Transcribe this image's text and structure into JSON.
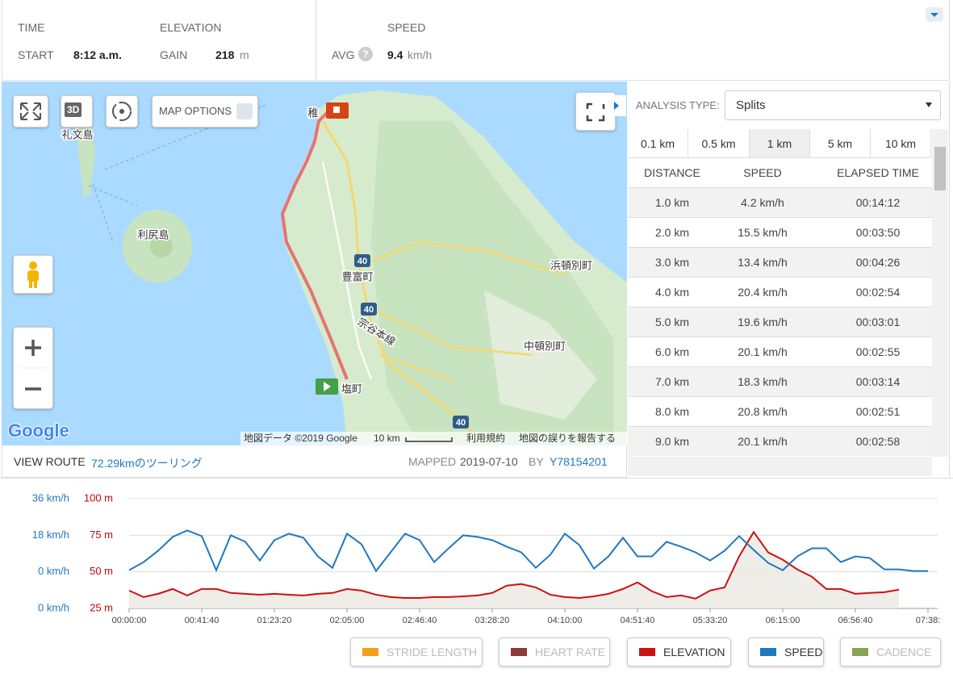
{
  "header": {
    "time": {
      "title": "TIME",
      "label": "START",
      "value": "8:12 a.m."
    },
    "elevation": {
      "title": "ELEVATION",
      "label": "GAIN",
      "value": "218",
      "unit": "m"
    },
    "speed": {
      "title": "SPEED",
      "label": "AVG",
      "help": "?",
      "value": "9.4",
      "unit": "km/h"
    }
  },
  "map": {
    "button_3d": "3D",
    "options": "MAP OPTIONS",
    "labels": [
      "礼文島",
      "利尻島",
      "稚",
      "豊富町",
      "宗谷本線",
      "浜頓別町",
      "中頓別町",
      "塩町"
    ],
    "road_numbers": [
      "40",
      "40",
      "40"
    ],
    "logo": "Google",
    "attribution": "地図データ ©2019 Google",
    "scale": "10 km",
    "terms": "利用規約",
    "report": "地図の誤りを報告する"
  },
  "route": {
    "label": "VIEW ROUTE",
    "name": "72.29kmのツーリング",
    "mapped": "MAPPED",
    "date": "2019-07-10",
    "by": "BY",
    "user": "Y78154201"
  },
  "analysis": {
    "label": "ANALYSIS TYPE:",
    "selected": "Splits",
    "tabs": [
      "0.1 km",
      "0.5 km",
      "1 km",
      "5 km",
      "10 km"
    ],
    "active_tab": 2,
    "columns": [
      "DISTANCE",
      "SPEED",
      "ELAPSED TIME"
    ],
    "rows": [
      [
        "1.0 km",
        "4.2 km/h",
        "00:14:12"
      ],
      [
        "2.0 km",
        "15.5 km/h",
        "00:03:50"
      ],
      [
        "3.0 km",
        "13.4 km/h",
        "00:04:26"
      ],
      [
        "4.0 km",
        "20.4 km/h",
        "00:02:54"
      ],
      [
        "5.0 km",
        "19.6 km/h",
        "00:03:01"
      ],
      [
        "6.0 km",
        "20.1 km/h",
        "00:02:55"
      ],
      [
        "7.0 km",
        "18.3 km/h",
        "00:03:14"
      ],
      [
        "8.0 km",
        "20.8 km/h",
        "00:02:51"
      ],
      [
        "9.0 km",
        "20.1 km/h",
        "00:02:58"
      ]
    ]
  },
  "chart_data": {
    "type": "line",
    "x": [
      0,
      500,
      1000,
      1500,
      2000,
      2500,
      3000,
      3500,
      4000,
      4500,
      5000,
      5500,
      6000,
      6500,
      7000,
      7500,
      8000,
      8500,
      9000,
      9500,
      10000,
      10500,
      11000,
      11500,
      12000,
      12500,
      13000,
      13500,
      14000,
      14500,
      15000,
      15500,
      16000,
      16500,
      17000,
      17500,
      18000,
      18500,
      19000,
      19500,
      20000,
      20500,
      21000,
      21500,
      22000,
      22500,
      23000,
      23500,
      24000,
      24500,
      25000,
      25500,
      26000,
      26500,
      27000,
      27500
    ],
    "xlim": [
      0,
      27800
    ],
    "xticks": [
      {
        "value": 0,
        "label": "00:00:00"
      },
      {
        "value": 2500,
        "label": "00:41:40"
      },
      {
        "value": 5000,
        "label": "01:23:20"
      },
      {
        "value": 7500,
        "label": "02:05:00"
      },
      {
        "value": 10000,
        "label": "02:46:40"
      },
      {
        "value": 12500,
        "label": "03:28:20"
      },
      {
        "value": 15000,
        "label": "04:10:00"
      },
      {
        "value": 17500,
        "label": "04:51:40"
      },
      {
        "value": 20000,
        "label": "05:33:20"
      },
      {
        "value": 22500,
        "label": "06:15:00"
      },
      {
        "value": 25000,
        "label": "06:56:40"
      },
      {
        "value": 27500,
        "label": "07:38:"
      }
    ],
    "ylim": [
      25,
      100
    ],
    "yticks": [
      {
        "value": 100,
        "label": "100 m"
      },
      {
        "value": 75,
        "label": "75 m"
      },
      {
        "value": 50,
        "label": "50 m"
      },
      {
        "value": 25,
        "label": "25 m"
      }
    ],
    "y2lim": [
      -18,
      36
    ],
    "y2ticks": [
      {
        "value": 36,
        "label": "36 km/h"
      },
      {
        "value": 18,
        "label": "18 km/h"
      },
      {
        "value": 0,
        "label": "0 km/h"
      }
    ],
    "y2_bottom_label": "0 km/h",
    "grid": true,
    "series": [
      {
        "name": "ELEVATION",
        "color": "#cc1111",
        "area": true,
        "values": [
          37.2,
          32.8,
          35.0,
          38.3,
          33.9,
          38.3,
          38.3,
          35.6,
          35.0,
          34.4,
          35.0,
          34.4,
          33.9,
          35.0,
          35.6,
          38.3,
          37.2,
          34.4,
          32.8,
          32.2,
          32.2,
          32.8,
          32.8,
          33.3,
          33.9,
          35.6,
          40.6,
          41.7,
          39.4,
          34.4,
          32.8,
          32.2,
          33.3,
          35.0,
          38.3,
          42.8,
          36.7,
          32.8,
          33.9,
          31.7,
          37.2,
          39.4,
          60.6,
          77.2,
          63.3,
          58.3,
          51.7,
          46.7,
          38.3,
          38.3,
          35.0,
          35.6,
          36.1,
          37.8,
          null,
          null
        ]
      },
      {
        "name": "SPEED",
        "color": "#1f78c1",
        "axis": "y2",
        "values": [
          0.8,
          4.8,
          10.4,
          17.2,
          20.4,
          17.6,
          0.8,
          18,
          14.8,
          5.6,
          15.6,
          18.8,
          16.8,
          7.6,
          2,
          18.8,
          13.6,
          0.4,
          9.6,
          18.8,
          15.6,
          4.8,
          11.6,
          18,
          17.2,
          15.6,
          12.4,
          9.6,
          2,
          8.4,
          18.8,
          13.2,
          1.6,
          7.6,
          16.8,
          7.6,
          7.6,
          14.8,
          12.4,
          9.6,
          5.6,
          10.4,
          17.6,
          10.8,
          4.4,
          0.8,
          7.6,
          11.6,
          11.6,
          4.8,
          7.6,
          6.8,
          1.2,
          1.2,
          0.4,
          0.4
        ]
      }
    ],
    "inactive_legend": [
      {
        "name": "STRIDE LENGTH",
        "color": "#f5a01a"
      },
      {
        "name": "HEART RATE",
        "color": "#8e3a3a"
      },
      {
        "name": "CADENCE",
        "color": "#86a35a"
      }
    ]
  }
}
